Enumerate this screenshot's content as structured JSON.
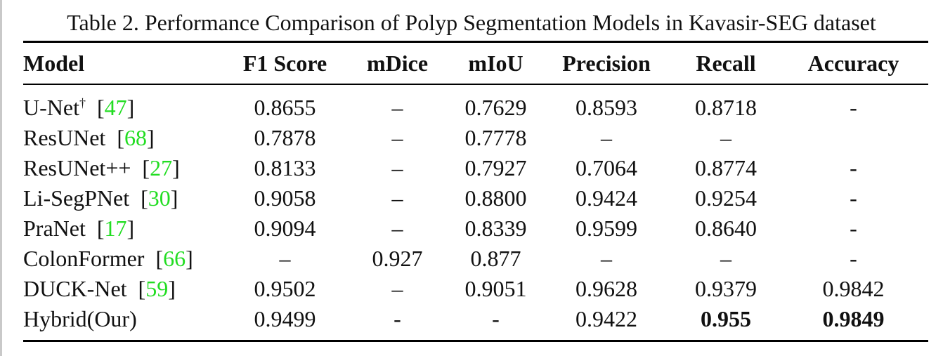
{
  "caption": "Table 2. Performance Comparison of Polyp Segmentation Models in Kavasir-SEG dataset",
  "colors": {
    "citation": "#22dd22",
    "text": "#111111",
    "rule": "#000000"
  },
  "headers": [
    "Model",
    "F1 Score",
    "mDice",
    "mIoU",
    "Precision",
    "Recall",
    "Accuracy"
  ],
  "rows": [
    {
      "model": "U-Net",
      "sup": "†",
      "cite": "47",
      "f1": "0.8655",
      "mdice": "–",
      "miou": "0.7629",
      "precision": "0.8593",
      "recall": "0.8718",
      "accuracy": "-"
    },
    {
      "model": "ResUNet",
      "sup": "",
      "cite": "68",
      "f1": "0.7878",
      "mdice": "–",
      "miou": "0.7778",
      "precision": "–",
      "recall": "–",
      "accuracy": ""
    },
    {
      "model": "ResUNet++",
      "sup": "",
      "cite": "27",
      "f1": "0.8133",
      "mdice": "–",
      "miou": "0.7927",
      "precision": "0.7064",
      "recall": "0.8774",
      "accuracy": "-"
    },
    {
      "model": "Li-SegPNet",
      "sup": "",
      "cite": "30",
      "f1": "0.9058",
      "mdice": "–",
      "miou": "0.8800",
      "precision": "0.9424",
      "recall": "0.9254",
      "accuracy": "-"
    },
    {
      "model": "PraNet",
      "sup": "",
      "cite": "17",
      "f1": "0.9094",
      "mdice": "–",
      "miou": "0.8339",
      "precision": "0.9599",
      "recall": "0.8640",
      "accuracy": "-"
    },
    {
      "model": "ColonFormer",
      "sup": "",
      "cite": "66",
      "f1": "–",
      "mdice": "0.927",
      "miou": "0.877",
      "precision": "–",
      "recall": "–",
      "accuracy": "-"
    },
    {
      "model": "DUCK-Net",
      "sup": "",
      "cite": "59",
      "f1": "0.9502",
      "mdice": "–",
      "miou": "0.9051",
      "precision": "0.9628",
      "recall": "0.9379",
      "accuracy": "0.9842"
    },
    {
      "model": "Hybrid(Our)",
      "sup": "",
      "cite": "",
      "f1": "0.9499",
      "mdice": "-",
      "miou": "-",
      "precision": "0.9422",
      "recall": "0.955",
      "accuracy": "0.9849",
      "bold": [
        "recall",
        "accuracy"
      ]
    }
  ]
}
